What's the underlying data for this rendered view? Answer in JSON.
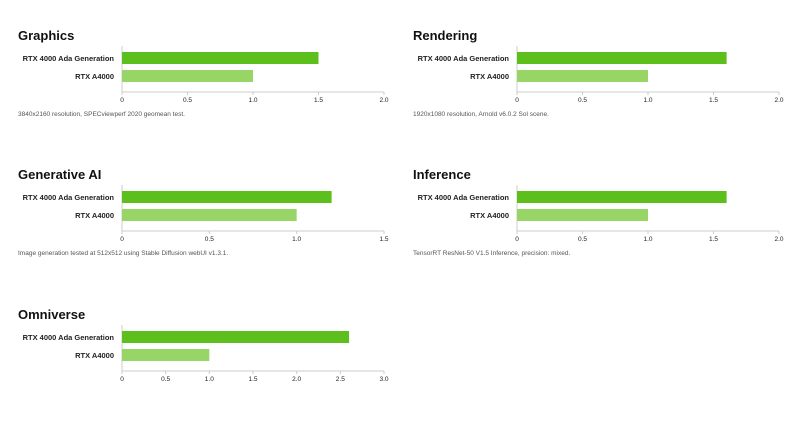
{
  "colors": {
    "primary": "#5cbf1c",
    "secondary": "#96d566",
    "axis": "#cccccc",
    "text": "#222222"
  },
  "chart_data": [
    {
      "type": "bar",
      "orientation": "horizontal",
      "title": "Graphics",
      "categories": [
        "RTX 4000 Ada Generation",
        "RTX A4000"
      ],
      "values": [
        1.5,
        1.0
      ],
      "xlim": [
        0,
        2.0
      ],
      "xticks": [
        "0",
        "0.5",
        "1.0",
        "1.5",
        "2.0"
      ],
      "note": "3840x2160 resolution, SPECviewperf 2020 geomean test."
    },
    {
      "type": "bar",
      "orientation": "horizontal",
      "title": "Rendering",
      "categories": [
        "RTX 4000 Ada Generation",
        "RTX A4000"
      ],
      "values": [
        1.6,
        1.0
      ],
      "xlim": [
        0,
        2.0
      ],
      "xticks": [
        "0",
        "0.5",
        "1.0",
        "1.5",
        "2.0"
      ],
      "note": "1920x1080 resolution, Arnold v6.0.2 Sol scene."
    },
    {
      "type": "bar",
      "orientation": "horizontal",
      "title": "Generative AI",
      "categories": [
        "RTX 4000 Ada Generation",
        "RTX A4000"
      ],
      "values": [
        1.2,
        1.0
      ],
      "xlim": [
        0,
        1.5
      ],
      "xticks": [
        "0",
        "0.5",
        "1.0",
        "1.5"
      ],
      "note": "Image generation tested at 512x512 using Stable Diffusion webUI v1.3.1."
    },
    {
      "type": "bar",
      "orientation": "horizontal",
      "title": "Inference",
      "categories": [
        "RTX 4000 Ada Generation",
        "RTX A4000"
      ],
      "values": [
        1.6,
        1.0
      ],
      "xlim": [
        0,
        2.0
      ],
      "xticks": [
        "0",
        "0.5",
        "1.0",
        "1.5",
        "2.0"
      ],
      "note": "TensorRT ResNet-50 V1.5 Inference, precision: mixed."
    },
    {
      "type": "bar",
      "orientation": "horizontal",
      "title": "Omniverse",
      "categories": [
        "RTX 4000 Ada Generation",
        "RTX A4000"
      ],
      "values": [
        2.6,
        1.0
      ],
      "xlim": [
        0,
        3.0
      ],
      "xticks": [
        "0",
        "0.5",
        "1.0",
        "1.5",
        "2.0",
        "2.5",
        "3.0"
      ],
      "note": ""
    }
  ]
}
